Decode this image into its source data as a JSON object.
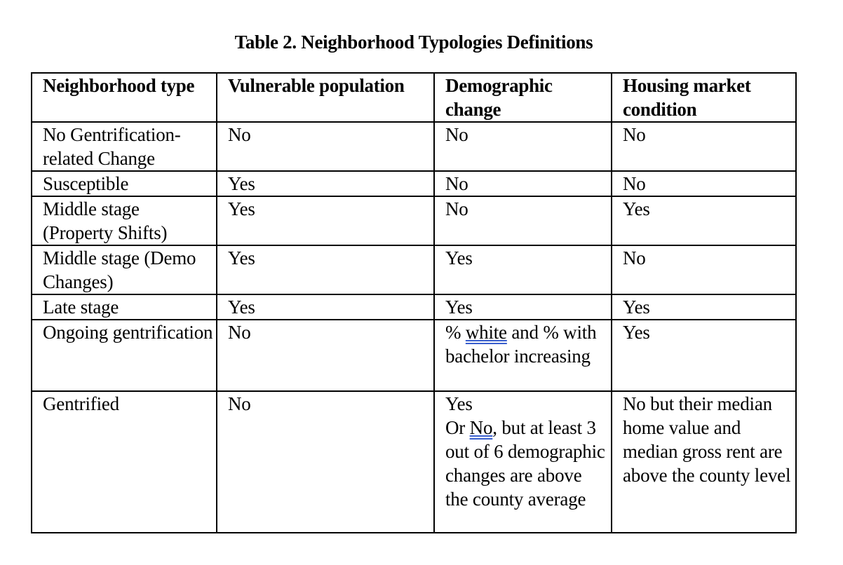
{
  "title": "Table 2. Neighborhood Typologies Definitions",
  "headers": {
    "type": "Neighborhood type",
    "vulnerable": "Vulnerable population",
    "demographic": "Demographic change",
    "housing": "Housing market condition"
  },
  "rows": [
    {
      "type": "No Gentrification-related Change",
      "vulnerable": "No",
      "demographic": "No",
      "housing": "No"
    },
    {
      "type": "Susceptible",
      "vulnerable": "Yes",
      "demographic": "No",
      "housing": "No"
    },
    {
      "type": "Middle stage (Property Shifts)",
      "vulnerable": "Yes",
      "demographic": "No",
      "housing": "Yes"
    },
    {
      "type": "Middle stage (Demo Changes)",
      "vulnerable": "Yes",
      "demographic": "Yes",
      "housing": "No"
    },
    {
      "type": "Late stage",
      "vulnerable": "Yes",
      "demographic": "Yes",
      "housing": "Yes"
    },
    {
      "type": "Ongoing gentrification",
      "vulnerable": "No",
      "demographic_parts": {
        "a": "% ",
        "u": "white",
        "b": " and % with bachelor increasing"
      },
      "housing": "Yes"
    },
    {
      "type": "Gentrified",
      "vulnerable": "No",
      "demographic_line1": "Yes",
      "demographic_parts": {
        "a": "Or ",
        "u": "No",
        "b": ", but at least 3 out of 6 demographic changes are above the county average"
      },
      "housing": "No but their median home value and median gross rent are above the county level"
    }
  ]
}
